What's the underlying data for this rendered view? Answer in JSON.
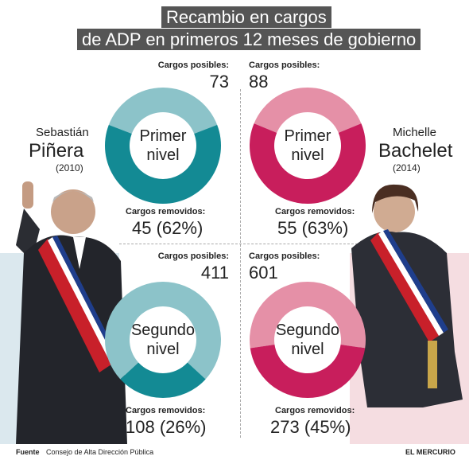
{
  "title": {
    "line1": "Recambio en cargos",
    "line2": "de ADP en primeros 12 meses de gobierno"
  },
  "persons": {
    "left": {
      "first": "Sebastián",
      "last": "Piñera",
      "year": "(2010)"
    },
    "right": {
      "first": "Michelle",
      "last": "Bachelet",
      "year": "(2014)"
    }
  },
  "labels": {
    "posibles": "Cargos posibles:",
    "removidos": "Cargos removidos:"
  },
  "footer": {
    "source_label": "Fuente",
    "source_text": "Consejo de Alta Dirección Pública",
    "credit": "EL MERCURIO"
  },
  "colors": {
    "pinera_dark": "#138a94",
    "pinera_light": "#8cc3c9",
    "bachelet_dark": "#c81e5c",
    "bachelet_light": "#e590a7",
    "title_bg": "#555555",
    "left_bg": "#dbe8ee",
    "right_bg": "#f5dde1"
  },
  "chart_data": [
    {
      "type": "pie",
      "person": "Sebastián Piñera",
      "center_label": [
        "Primer",
        "nivel"
      ],
      "total": 73,
      "removed": 45,
      "removed_pct": 62,
      "total_text": "73",
      "removed_text": "45 (62%)"
    },
    {
      "type": "pie",
      "person": "Michelle Bachelet",
      "center_label": [
        "Primer",
        "nivel"
      ],
      "total": 88,
      "removed": 55,
      "removed_pct": 63,
      "total_text": "88",
      "removed_text": "55 (63%)"
    },
    {
      "type": "pie",
      "person": "Sebastián Piñera",
      "center_label": [
        "Segundo",
        "nivel"
      ],
      "total": 411,
      "removed": 108,
      "removed_pct": 26,
      "total_text": "411",
      "removed_text": "108 (26%)"
    },
    {
      "type": "pie",
      "person": "Michelle Bachelet",
      "center_label": [
        "Segundo",
        "nivel"
      ],
      "total": 601,
      "removed": 273,
      "removed_pct": 45,
      "total_text": "601",
      "removed_text": "273 (45%)"
    }
  ]
}
